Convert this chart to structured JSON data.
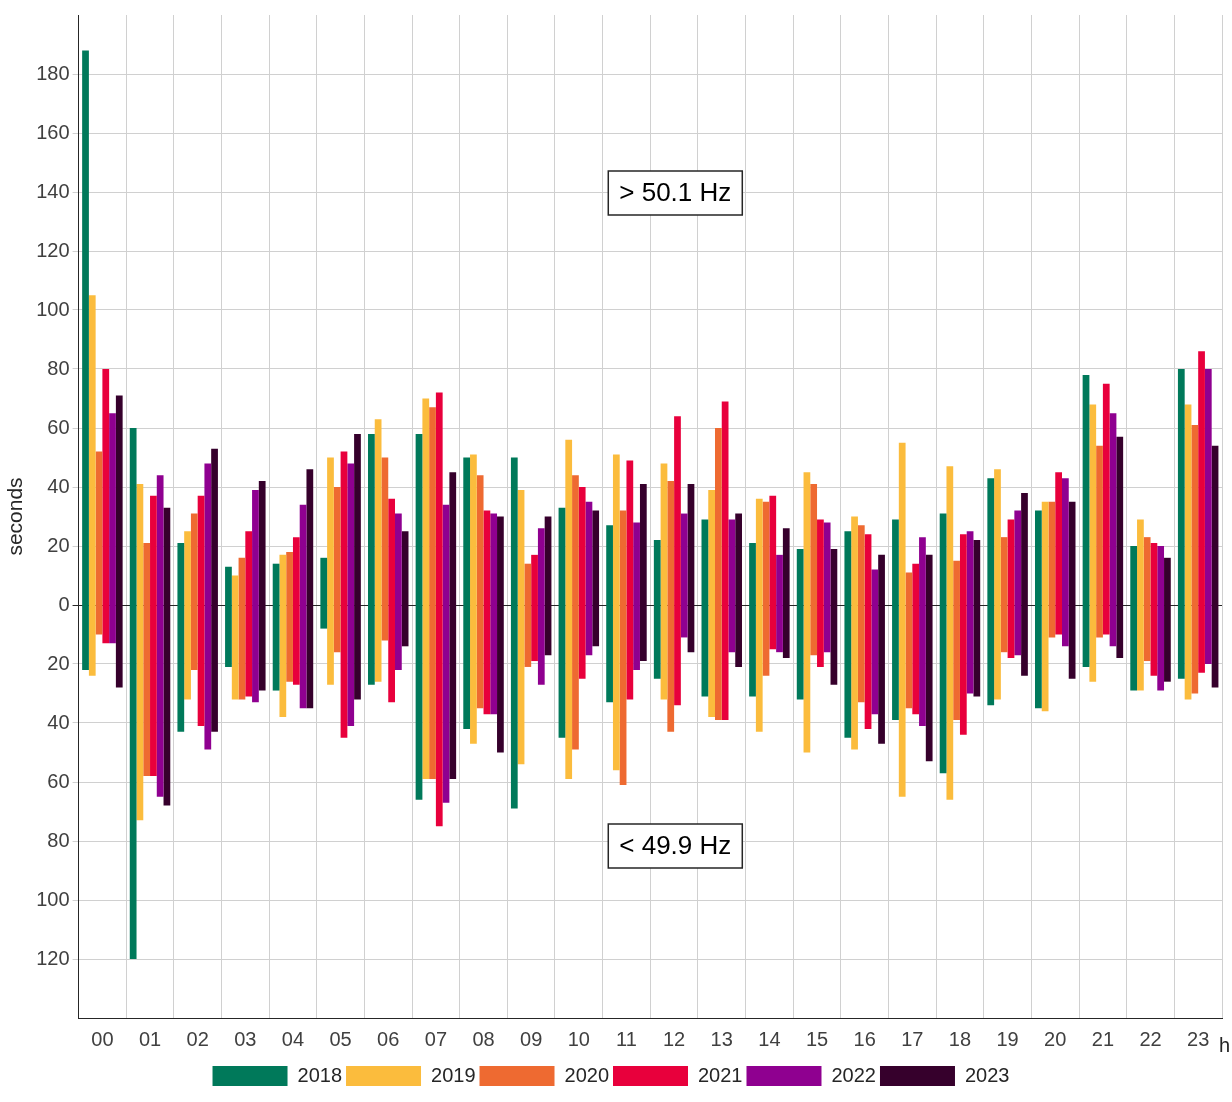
{
  "chart_data": {
    "type": "bar",
    "ylabel": "seconds",
    "xlabel": "h",
    "categories": [
      "00",
      "01",
      "02",
      "03",
      "04",
      "05",
      "06",
      "07",
      "08",
      "09",
      "10",
      "11",
      "12",
      "13",
      "14",
      "15",
      "16",
      "17",
      "18",
      "19",
      "20",
      "21",
      "22",
      "23"
    ],
    "ylim": [
      -140,
      200
    ],
    "yticks": [
      {
        "value": -120,
        "label": "120"
      },
      {
        "value": -100,
        "label": "100"
      },
      {
        "value": -80,
        "label": "80"
      },
      {
        "value": -60,
        "label": "60"
      },
      {
        "value": -40,
        "label": "40"
      },
      {
        "value": -20,
        "label": "20"
      },
      0,
      20,
      40,
      60,
      80,
      100,
      120,
      140,
      160,
      180
    ],
    "grid": true,
    "legend": "bottom",
    "annotations": [
      "> 50.1 Hz",
      "< 49.9 Hz"
    ],
    "series": [
      {
        "name": "2018",
        "color": "#00795a",
        "base": [
          -22,
          -120,
          -43,
          -21,
          -29,
          -8,
          -27,
          -66,
          -42,
          -69,
          -45,
          -33,
          -25,
          -31,
          -31,
          -32,
          -45,
          -39,
          -57,
          -34,
          -35,
          -21,
          -29,
          -25
        ],
        "values": [
          210,
          180,
          64,
          34,
          43,
          24,
          85,
          124,
          92,
          119,
          78,
          60,
          47,
          60,
          52,
          51,
          70,
          68,
          88,
          77,
          67,
          99,
          49,
          105
        ]
      },
      {
        "name": "2019",
        "color": "#fbbc3d",
        "base": [
          -24,
          -73,
          -32,
          -32,
          -38,
          -27,
          -26,
          -59,
          -47,
          -54,
          -59,
          -56,
          -32,
          -38,
          -43,
          -50,
          -49,
          -65,
          -66,
          -32,
          -36,
          -26,
          -29,
          -32
        ],
        "values": [
          129,
          114,
          57,
          42,
          55,
          77,
          89,
          129,
          98,
          93,
          115,
          107,
          80,
          77,
          79,
          95,
          79,
          120,
          113,
          78,
          71,
          94,
          58,
          100
        ]
      },
      {
        "name": "2020",
        "color": "#ee6a31",
        "base": [
          -10,
          -58,
          -22,
          -32,
          -26,
          -16,
          -12,
          -59,
          -35,
          -21,
          -49,
          -61,
          -43,
          -39,
          -24,
          -17,
          -33,
          -35,
          -39,
          -16,
          -11,
          -11,
          -19,
          -30
        ],
        "values": [
          62,
          79,
          53,
          48,
          44,
          56,
          62,
          126,
          79,
          35,
          93,
          93,
          85,
          99,
          59,
          58,
          60,
          46,
          54,
          39,
          46,
          65,
          42,
          91
        ]
      },
      {
        "name": "2021",
        "color": "#e8003c",
        "base": [
          -13,
          -58,
          -41,
          -31,
          -27,
          -45,
          -33,
          -75,
          -37,
          -19,
          -25,
          -32,
          -34,
          -39,
          -15,
          -21,
          -42,
          -37,
          -44,
          -18,
          -10,
          -10,
          -24,
          -23
        ],
        "values": [
          93,
          95,
          78,
          56,
          50,
          97,
          69,
          147,
          69,
          36,
          65,
          81,
          98,
          108,
          52,
          50,
          66,
          51,
          68,
          47,
          55,
          85,
          45,
          109
        ]
      },
      {
        "name": "2022",
        "color": "#8f0090",
        "base": [
          -13,
          -65,
          -49,
          -33,
          -35,
          -41,
          -22,
          -67,
          -37,
          -27,
          -17,
          -22,
          -11,
          -16,
          -16,
          -16,
          -37,
          -41,
          -30,
          -17,
          -14,
          -14,
          -29,
          -20
        ],
        "values": [
          78,
          109,
          97,
          72,
          69,
          89,
          53,
          101,
          68,
          53,
          52,
          50,
          42,
          45,
          33,
          44,
          49,
          64,
          55,
          49,
          57,
          79,
          49,
          100
        ]
      },
      {
        "name": "2023",
        "color": "#36002c",
        "base": [
          -28,
          -68,
          -43,
          -29,
          -35,
          -32,
          -14,
          -59,
          -50,
          -17,
          -14,
          -19,
          -16,
          -21,
          -18,
          -27,
          -47,
          -53,
          -31,
          -24,
          -25,
          -18,
          -26,
          -28
        ],
        "values": [
          99,
          101,
          96,
          71,
          81,
          90,
          39,
          104,
          80,
          47,
          46,
          60,
          57,
          52,
          44,
          46,
          64,
          70,
          53,
          62,
          60,
          75,
          42,
          82
        ]
      }
    ]
  }
}
